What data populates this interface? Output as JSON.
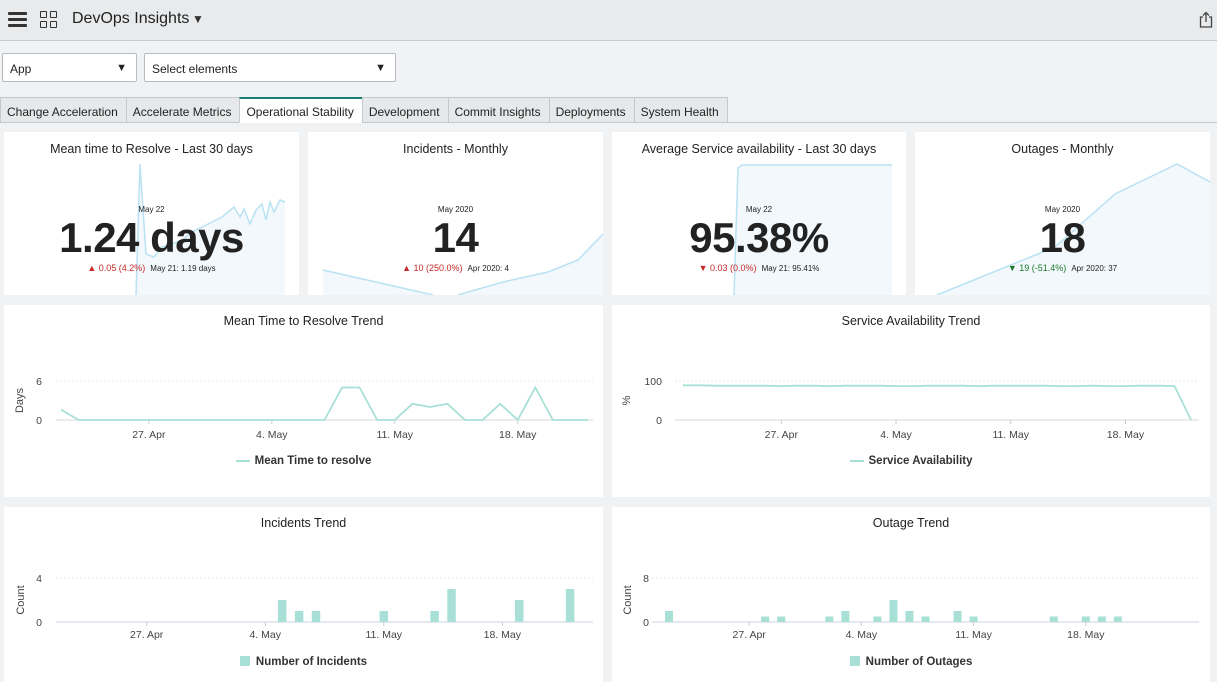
{
  "header": {
    "title": "DevOps Insights"
  },
  "filters": {
    "app": "App",
    "elements": "Select elements"
  },
  "tabs": [
    {
      "label": "Change Acceleration"
    },
    {
      "label": "Accelerate Metrics"
    },
    {
      "label": "Operational Stability",
      "active": true
    },
    {
      "label": "Development"
    },
    {
      "label": "Commit Insights"
    },
    {
      "label": "Deployments"
    },
    {
      "label": "System Health"
    }
  ],
  "kpis": [
    {
      "title": "Mean time to Resolve - Last 30 days",
      "date": "May 22",
      "value": "1.24 days",
      "change": "▲ 0.05 (4.2%)",
      "direction": "up",
      "previous": "May 21: 1.19 days"
    },
    {
      "title": "Incidents - Monthly",
      "date": "May 2020",
      "value": "14",
      "change": "▲ 10 (250.0%)",
      "direction": "up",
      "previous": "Apr 2020: 4"
    },
    {
      "title": "Average Service availability - Last 30 days",
      "date": "May 22",
      "value": "95.38%",
      "change": "▼ 0.03 (0.0%)",
      "direction": "down-red",
      "previous": "May 21: 95.41%"
    },
    {
      "title": "Outages - Monthly",
      "date": "May 2020",
      "value": "18",
      "change": "▼ 19 (-51.4%)",
      "direction": "down-green",
      "previous": "Apr 2020: 37"
    }
  ],
  "colors": {
    "accent": "#1a7f74",
    "series": "#a8e0d8",
    "spark_line": "#b9e2f2",
    "spark_fill": "#f2f8fc",
    "red": "#c62828",
    "green": "#1b7a2c"
  },
  "chart_data": [
    {
      "type": "line",
      "title": "Mean Time to Resolve Trend",
      "ylabel": "Days",
      "ylim": [
        0,
        6
      ],
      "yticks": [
        "6",
        "0"
      ],
      "xticks": [
        "27. Apr",
        "4. May",
        "11. May",
        "18. May"
      ],
      "x": [
        "Apr 22",
        "Apr 23",
        "Apr 24",
        "Apr 25",
        "Apr 26",
        "Apr 27",
        "Apr 28",
        "Apr 29",
        "Apr 30",
        "May 1",
        "May 2",
        "May 3",
        "May 4",
        "May 5",
        "May 6",
        "May 7",
        "May 8",
        "May 9",
        "May 10",
        "May 11",
        "May 12",
        "May 13",
        "May 14",
        "May 15",
        "May 16",
        "May 17",
        "May 18",
        "May 19",
        "May 20",
        "May 21",
        "May 22"
      ],
      "series": [
        {
          "name": "Mean Time to resolve",
          "values": [
            1.6,
            0,
            0,
            0,
            0,
            0,
            0,
            0,
            0,
            0,
            0,
            0,
            0,
            0,
            0,
            0,
            5,
            5,
            0,
            0,
            2.5,
            2,
            2.5,
            0,
            0,
            2.5,
            0,
            5,
            0,
            0,
            0
          ]
        }
      ],
      "grid": true,
      "legend": "bottom"
    },
    {
      "type": "line",
      "title": "Service Availability Trend",
      "ylabel": "%",
      "ylim": [
        0,
        100
      ],
      "yticks": [
        "100",
        "0"
      ],
      "xticks": [
        "27. Apr",
        "4. May",
        "11. May",
        "18. May"
      ],
      "x": [
        "Apr 22",
        "Apr 23",
        "Apr 24",
        "Apr 25",
        "Apr 26",
        "Apr 27",
        "Apr 28",
        "Apr 29",
        "Apr 30",
        "May 1",
        "May 2",
        "May 3",
        "May 4",
        "May 5",
        "May 6",
        "May 7",
        "May 8",
        "May 9",
        "May 10",
        "May 11",
        "May 12",
        "May 13",
        "May 14",
        "May 15",
        "May 16",
        "May 17",
        "May 18",
        "May 19",
        "May 20",
        "May 21",
        "May 22",
        "May 23"
      ],
      "series": [
        {
          "name": "Service Availability",
          "values": [
            89,
            89,
            88,
            88,
            88,
            88,
            87,
            88,
            88,
            87,
            88,
            88,
            88,
            87,
            87,
            88,
            88,
            88,
            87,
            88,
            88,
            88,
            88,
            87,
            87,
            88,
            87,
            87,
            88,
            88,
            87,
            0
          ]
        }
      ],
      "grid": true,
      "legend": "bottom"
    },
    {
      "type": "bar",
      "title": "Incidents Trend",
      "ylabel": "Count",
      "ylim": [
        0,
        4
      ],
      "yticks": [
        "4",
        "0"
      ],
      "xticks": [
        "27. Apr",
        "4. May",
        "11. May",
        "18. May"
      ],
      "x": [
        "Apr 22",
        "Apr 23",
        "Apr 24",
        "Apr 25",
        "Apr 26",
        "Apr 27",
        "Apr 28",
        "Apr 29",
        "Apr 30",
        "May 1",
        "May 2",
        "May 3",
        "May 4",
        "May 5",
        "May 6",
        "May 7",
        "May 8",
        "May 9",
        "May 10",
        "May 11",
        "May 12",
        "May 13",
        "May 14",
        "May 15",
        "May 16",
        "May 17",
        "May 18",
        "May 19",
        "May 20",
        "May 21",
        "May 22"
      ],
      "series": [
        {
          "name": "Number of Incidents",
          "values": [
            0,
            0,
            0,
            0,
            0,
            0,
            0,
            0,
            0,
            0,
            0,
            0,
            0,
            2,
            1,
            1,
            0,
            0,
            0,
            1,
            0,
            0,
            1,
            3,
            0,
            0,
            0,
            2,
            0,
            0,
            3
          ]
        }
      ],
      "grid": true,
      "legend": "bottom"
    },
    {
      "type": "bar",
      "title": "Outage Trend",
      "ylabel": "Count",
      "ylim": [
        0,
        8
      ],
      "yticks": [
        "8",
        "0"
      ],
      "xticks": [
        "27. Apr",
        "4. May",
        "11. May",
        "18. May"
      ],
      "x": [
        "Apr 22",
        "Apr 23",
        "Apr 24",
        "Apr 25",
        "Apr 26",
        "Apr 27",
        "Apr 28",
        "Apr 29",
        "Apr 30",
        "May 1",
        "May 2",
        "May 3",
        "May 4",
        "May 5",
        "May 6",
        "May 7",
        "May 8",
        "May 9",
        "May 10",
        "May 11",
        "May 12",
        "May 13",
        "May 14",
        "May 15",
        "May 16",
        "May 17",
        "May 18",
        "May 19",
        "May 20",
        "May 21",
        "May 22",
        "May 23"
      ],
      "series": [
        {
          "name": "Number of Outages",
          "values": [
            2,
            0,
            0,
            0,
            0,
            0,
            1,
            1,
            0,
            0,
            1,
            2,
            0,
            1,
            4,
            2,
            1,
            0,
            2,
            1,
            0,
            0,
            0,
            0,
            1,
            0,
            1,
            1,
            1,
            0,
            0,
            0
          ]
        }
      ],
      "grid": true,
      "legend": "bottom"
    }
  ]
}
